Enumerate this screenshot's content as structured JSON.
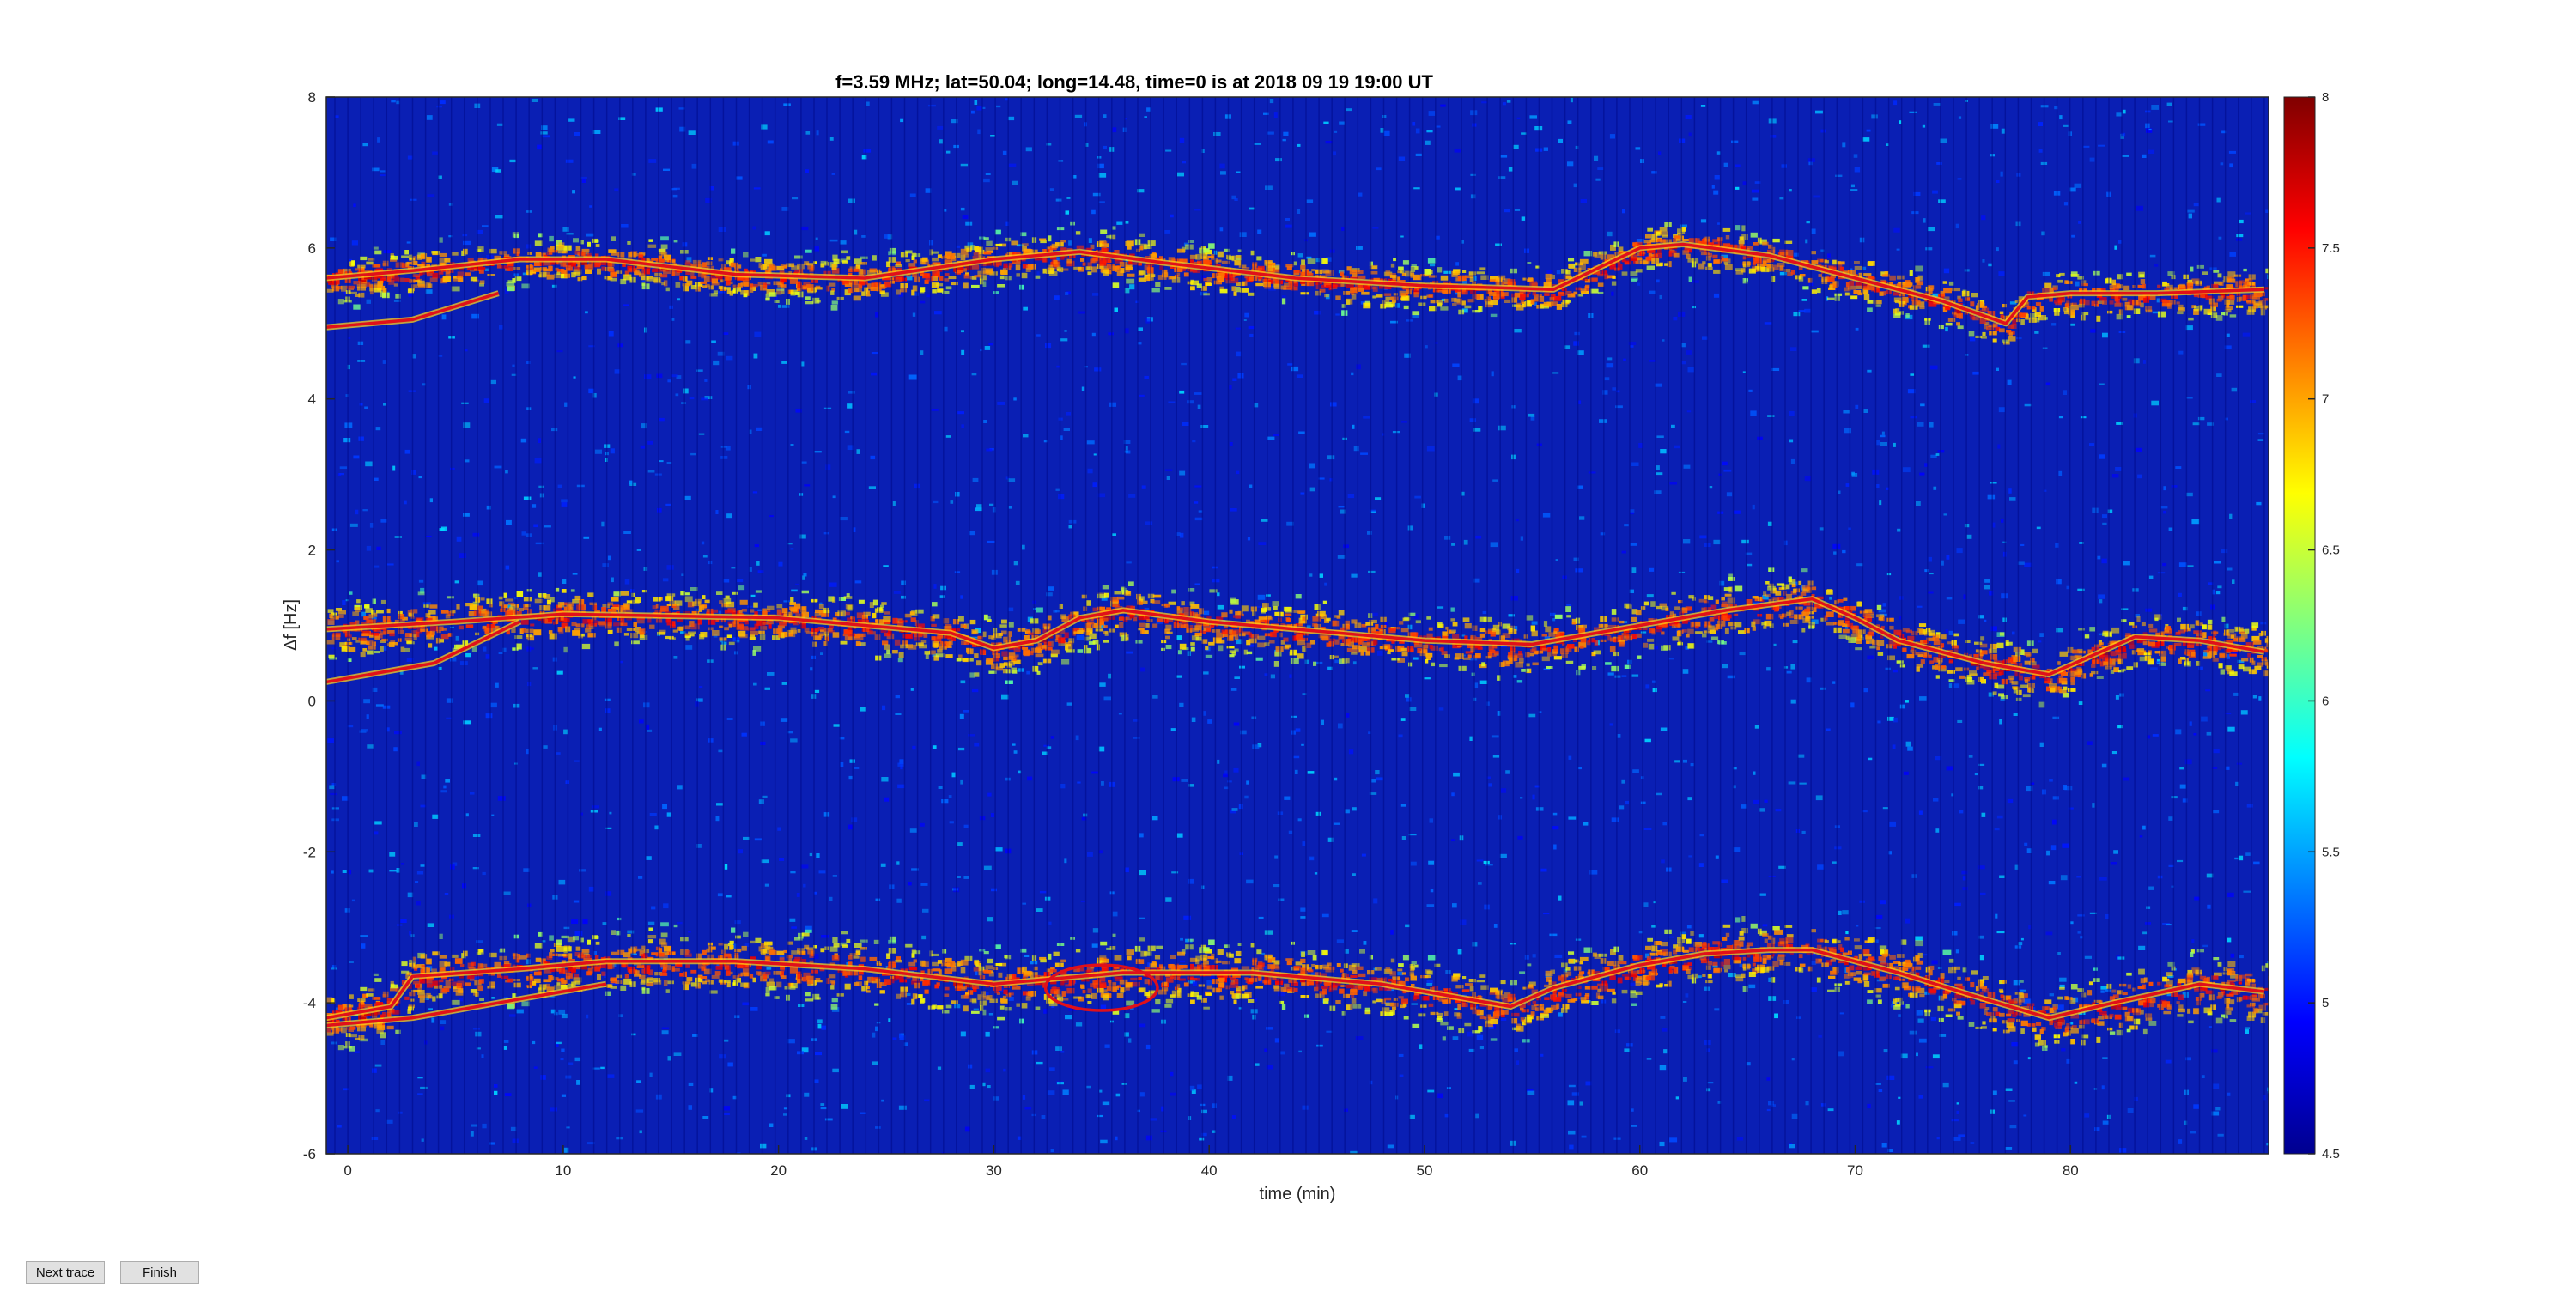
{
  "buttons": {
    "next_label": "Next trace",
    "finish_label": "Finish"
  },
  "chart_data": {
    "type": "heatmap",
    "title": "f=3.59 MHz;  lat=50.04; long=14.48, time=0 is at 2018 09 19 19:00 UT",
    "xlabel": "time (min)",
    "ylabel": "Δf [Hz]",
    "xlim": [
      -1,
      89.2
    ],
    "ylim": [
      -6,
      8
    ],
    "xticks": [
      0,
      10,
      20,
      30,
      40,
      50,
      60,
      70,
      80
    ],
    "yticks": [
      -6,
      -4,
      -2,
      0,
      2,
      4,
      6,
      8
    ],
    "colormap": "jet",
    "colorbar": {
      "clim": [
        4.5,
        8
      ],
      "ticks": [
        4.5,
        5,
        5.5,
        6,
        6.5,
        7,
        7.5,
        8
      ]
    },
    "background_color": "#0a1fb4",
    "traces": [
      {
        "name": "",
        "x": [
          -1,
          3,
          8,
          12,
          18,
          24,
          30,
          34,
          38,
          44,
          50,
          56,
          60,
          62,
          66,
          70,
          74,
          77,
          78,
          80,
          84,
          89
        ],
        "y": [
          5.6,
          5.7,
          5.85,
          5.85,
          5.65,
          5.6,
          5.85,
          5.95,
          5.8,
          5.6,
          5.5,
          5.45,
          6.0,
          6.05,
          5.9,
          5.6,
          5.3,
          5.0,
          5.35,
          5.4,
          5.4,
          5.45
        ]
      },
      {
        "name": "",
        "x": [
          -1,
          3,
          7
        ],
        "y": [
          4.95,
          5.05,
          5.4
        ]
      },
      {
        "name": "",
        "x": [
          -1,
          5,
          10,
          20,
          28,
          30,
          32,
          34,
          36,
          40,
          46,
          50,
          55,
          60,
          64,
          68,
          70,
          72,
          76,
          79,
          81,
          83,
          86,
          89
        ],
        "y": [
          0.95,
          1.05,
          1.15,
          1.1,
          0.9,
          0.7,
          0.8,
          1.1,
          1.2,
          1.05,
          0.9,
          0.8,
          0.75,
          1.0,
          1.2,
          1.35,
          1.1,
          0.8,
          0.5,
          0.35,
          0.6,
          0.85,
          0.8,
          0.65
        ]
      },
      {
        "name": "",
        "x": [
          -1,
          4,
          8
        ],
        "y": [
          0.25,
          0.5,
          1.05
        ]
      },
      {
        "name": "",
        "x": [
          -1,
          2,
          3,
          8,
          12,
          18,
          24,
          30,
          36,
          42,
          48,
          54,
          56,
          60,
          63,
          66,
          68,
          72,
          76,
          79,
          82,
          86,
          89
        ],
        "y": [
          -4.2,
          -4.05,
          -3.65,
          -3.55,
          -3.45,
          -3.45,
          -3.55,
          -3.75,
          -3.6,
          -3.6,
          -3.75,
          -4.05,
          -3.8,
          -3.5,
          -3.35,
          -3.3,
          -3.3,
          -3.6,
          -3.95,
          -4.2,
          -4.0,
          -3.75,
          -3.85
        ]
      },
      {
        "name": "",
        "x": [
          -1,
          3,
          8,
          12
        ],
        "y": [
          -4.3,
          -4.2,
          -3.95,
          -3.75
        ]
      }
    ],
    "annotations_loops": [
      {
        "x_center": 35,
        "y_center": -3.8,
        "x_radius": 2.6,
        "y_radius": 0.3
      }
    ],
    "bands": [
      {
        "center_trace": 0,
        "spread": 0.45
      },
      {
        "center_trace": 2,
        "spread": 0.55
      },
      {
        "center_trace": 4,
        "spread": 0.6
      }
    ]
  }
}
